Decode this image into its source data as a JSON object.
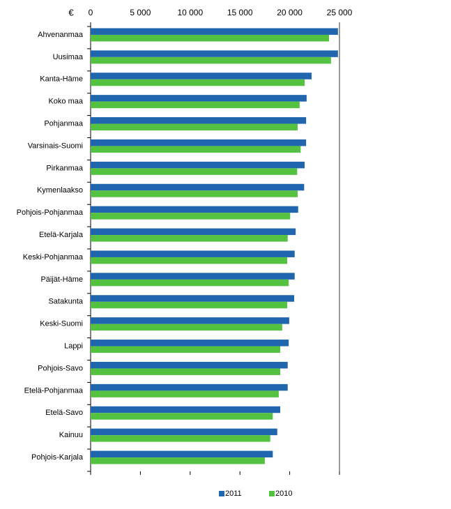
{
  "chart_data": {
    "type": "hbar",
    "unit_label": "€",
    "categories": [
      "Ahvenanmaa",
      "Uusimaa",
      "Kanta-Häme",
      "Koko maa",
      "Pohjanmaa",
      "Varsinais-Suomi",
      "Pirkanmaa",
      "Kymenlaakso",
      "Pohjois-Pohjanmaa",
      "Etelä-Karjala",
      "Keski-Pohjanmaa",
      "Päijät-Häme",
      "Satakunta",
      "Keski-Suomi",
      "Lappi",
      "Pohjois-Savo",
      "Etelä-Pohjanmaa",
      "Etelä-Savo",
      "Kainuu",
      "Pohjois-Karjala"
    ],
    "series": [
      {
        "name": "2011",
        "color": "#1f66ae",
        "values": [
          24850,
          24850,
          22200,
          21700,
          21650,
          21650,
          21500,
          21450,
          20850,
          20600,
          20500,
          20500,
          20450,
          19950,
          19900,
          19800,
          19800,
          19050,
          18750,
          18300
        ]
      },
      {
        "name": "2010",
        "color": "#55c141",
        "values": [
          23950,
          24150,
          21500,
          21000,
          20800,
          21100,
          20750,
          20800,
          20050,
          19800,
          19750,
          19900,
          19750,
          19250,
          19050,
          19050,
          18900,
          18300,
          18050,
          17500
        ]
      }
    ],
    "xlim": [
      0,
      25000
    ],
    "xticks": [
      0,
      {
        "value": 5000,
        "label": "5 000"
      },
      {
        "value": 10000,
        "label": "10 000"
      },
      {
        "value": 15000,
        "label": "15 000"
      },
      {
        "value": 20000,
        "label": "20 000"
      },
      {
        "value": 25000,
        "label": "25 000"
      }
    ],
    "legend": "bottom"
  }
}
